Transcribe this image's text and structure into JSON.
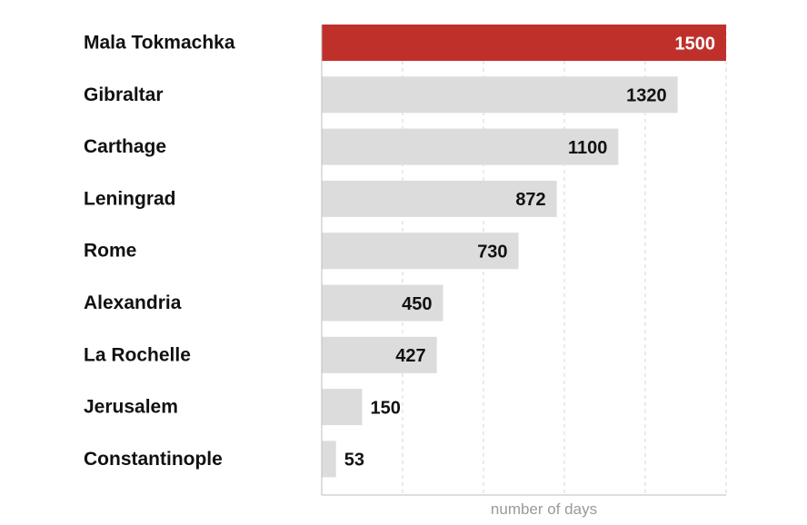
{
  "chart_data": {
    "type": "bar",
    "orientation": "horizontal",
    "categories": [
      "Mala Tokmachka",
      "Gibraltar",
      "Carthage",
      "Leningrad",
      "Rome",
      "Alexandria",
      "La Rochelle",
      "Jerusalem",
      "Constantinople"
    ],
    "values": [
      1500,
      1320,
      1100,
      872,
      730,
      450,
      427,
      150,
      53
    ],
    "highlight_index": 0,
    "xlabel": "number of days",
    "xlim": [
      0,
      1500
    ],
    "grid": true,
    "colors": {
      "highlight": "#c0302b",
      "bar": "#dcdcdc",
      "text": "#111111",
      "axis_title": "#9a9a9a"
    }
  }
}
